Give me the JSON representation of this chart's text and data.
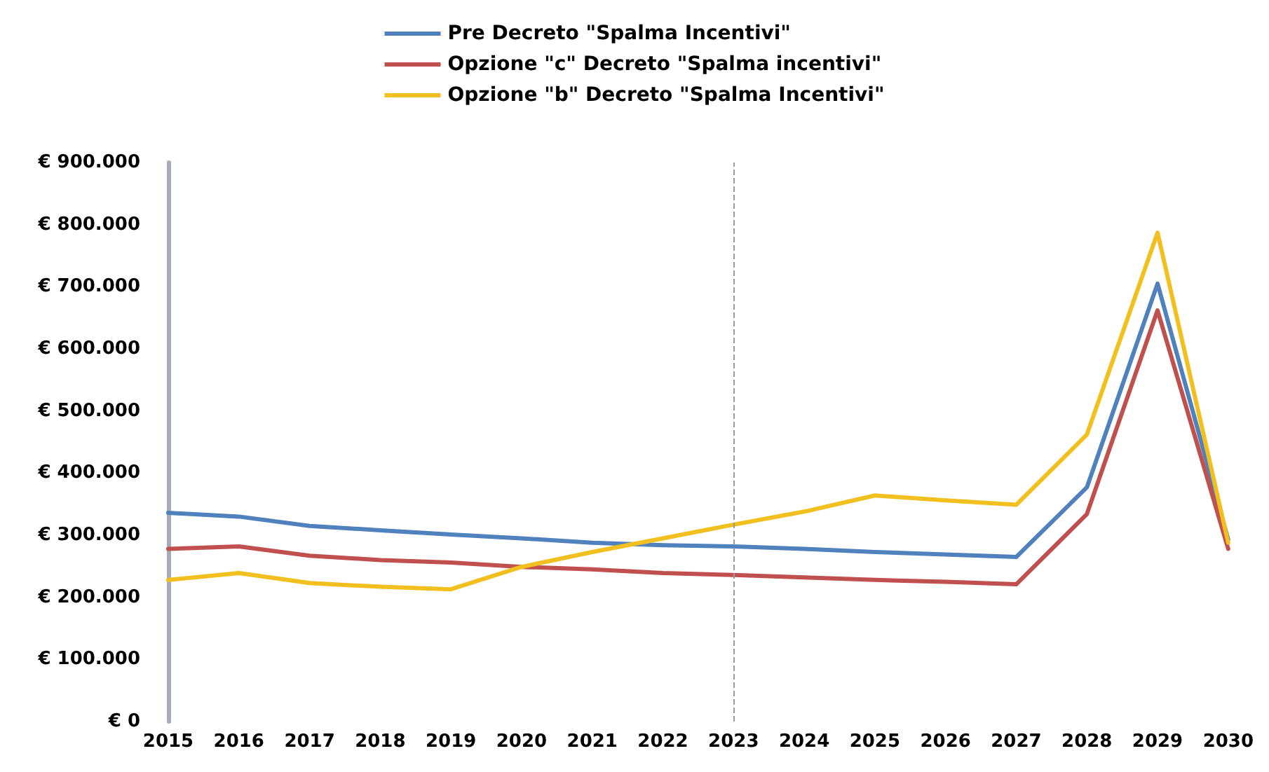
{
  "chart_data": {
    "type": "line",
    "categories": [
      "2015",
      "2016",
      "2017",
      "2018",
      "2019",
      "2020",
      "2021",
      "2022",
      "2023",
      "2024",
      "2025",
      "2026",
      "2027",
      "2028",
      "2029",
      "2030"
    ],
    "series": [
      {
        "name": "Pre Decreto \"Spalma Incentivi\"",
        "color": "#4f81bd",
        "values": [
          336000,
          330000,
          315000,
          308000,
          301000,
          295000,
          288000,
          284000,
          282000,
          278000,
          273000,
          269000,
          265000,
          377000,
          705000,
          293000
        ]
      },
      {
        "name": "Opzione \"c\" Decreto \"Spalma incentivi\"",
        "color": "#c0504d",
        "values": [
          278000,
          282000,
          267000,
          260000,
          256000,
          249000,
          245000,
          239000,
          236000,
          232000,
          228000,
          225000,
          221000,
          334000,
          662000,
          278000
        ]
      },
      {
        "name": "Opzione \"b\" Decreto \"Spalma Incentivi\"",
        "color": "#f2c01e",
        "values": [
          228000,
          239000,
          223000,
          217000,
          213000,
          249000,
          273000,
          295000,
          317000,
          338000,
          364000,
          356000,
          349000,
          462000,
          787000,
          288000
        ]
      }
    ],
    "ylim": [
      0,
      900000
    ],
    "yticks": [
      {
        "value": 0,
        "label": "€ 0"
      },
      {
        "value": 100000,
        "label": "€ 100.000"
      },
      {
        "value": 200000,
        "label": "€ 200.000"
      },
      {
        "value": 300000,
        "label": "€ 300.000"
      },
      {
        "value": 400000,
        "label": "€ 400.000"
      },
      {
        "value": 500000,
        "label": "€ 500.000"
      },
      {
        "value": 600000,
        "label": "€ 600.000"
      },
      {
        "value": 700000,
        "label": "€ 700.000"
      },
      {
        "value": 800000,
        "label": "€ 800.000"
      },
      {
        "value": 900000,
        "label": "€ 900.000"
      }
    ],
    "ref_lines": [
      {
        "axis": "x",
        "value": "2023",
        "color": "#999999",
        "line_style": "dashed"
      }
    ],
    "grid": false,
    "legend": "top",
    "marker": "none",
    "line_style": "solid"
  }
}
